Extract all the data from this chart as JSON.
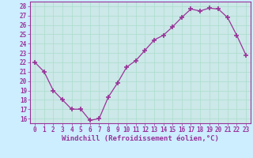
{
  "hours": [
    0,
    1,
    2,
    3,
    4,
    5,
    6,
    7,
    8,
    9,
    10,
    11,
    12,
    13,
    14,
    15,
    16,
    17,
    18,
    19,
    20,
    21,
    22,
    23
  ],
  "values": [
    22,
    21,
    19,
    18,
    17,
    17,
    15.8,
    16,
    18.3,
    19.8,
    21.5,
    22.2,
    23.3,
    24.4,
    24.9,
    25.8,
    26.8,
    27.7,
    27.5,
    27.8,
    27.7,
    26.8,
    24.9,
    22.8
  ],
  "line_color": "#993399",
  "marker": "+",
  "marker_size": 4,
  "bg_color": "#cceeff",
  "grid_color": "#aaddcc",
  "xlabel": "Windchill (Refroidissement éolien,°C)",
  "ylim": [
    15.5,
    28.5
  ],
  "yticks": [
    16,
    17,
    18,
    19,
    20,
    21,
    22,
    23,
    24,
    25,
    26,
    27,
    28
  ],
  "xlim": [
    -0.5,
    23.5
  ],
  "xticks": [
    0,
    1,
    2,
    3,
    4,
    5,
    6,
    7,
    8,
    9,
    10,
    11,
    12,
    13,
    14,
    15,
    16,
    17,
    18,
    19,
    20,
    21,
    22,
    23
  ],
  "tick_label_size": 5.5,
  "xlabel_size": 6.5,
  "spine_color": "#993399",
  "axis_bg": "#cce8e8"
}
